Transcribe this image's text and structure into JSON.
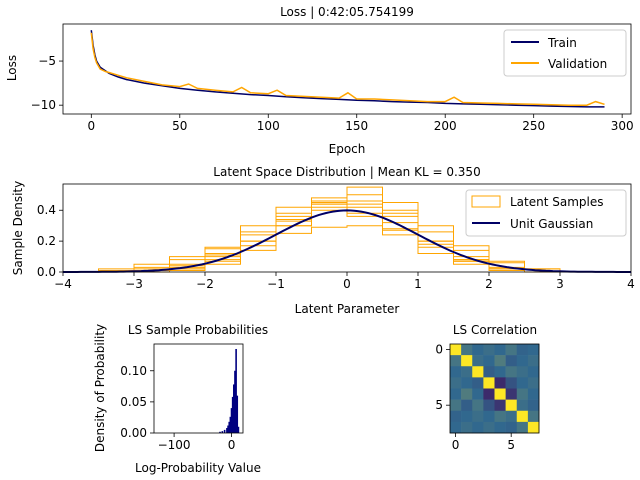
{
  "chart_data": [
    {
      "type": "line",
      "title": "Loss | 0:42:05.754199",
      "xlabel": "Epoch",
      "ylabel": "Loss",
      "xlim": [
        -16,
        305
      ],
      "ylim": [
        -11,
        -0.8
      ],
      "xticks": [
        0,
        50,
        100,
        150,
        200,
        250,
        300
      ],
      "yticks": [
        -5,
        -10
      ],
      "legend_position": "top-right",
      "series": [
        {
          "name": "Train",
          "color": "#000066",
          "x": [
            0,
            1,
            2,
            3,
            5,
            8,
            10,
            15,
            20,
            30,
            40,
            50,
            60,
            70,
            80,
            90,
            100,
            110,
            120,
            130,
            140,
            150,
            160,
            170,
            180,
            190,
            200,
            210,
            220,
            230,
            240,
            250,
            260,
            270,
            280,
            290
          ],
          "y": [
            -1.5,
            -3.2,
            -4.3,
            -5.0,
            -5.7,
            -6.1,
            -6.4,
            -6.8,
            -7.1,
            -7.5,
            -7.8,
            -8.1,
            -8.3,
            -8.5,
            -8.65,
            -8.8,
            -8.9,
            -9.05,
            -9.15,
            -9.25,
            -9.35,
            -9.45,
            -9.5,
            -9.6,
            -9.65,
            -9.7,
            -9.8,
            -9.85,
            -9.9,
            -9.95,
            -10.0,
            -10.05,
            -10.1,
            -10.15,
            -10.2,
            -10.2
          ]
        },
        {
          "name": "Validation",
          "color": "#ffa500",
          "x": [
            0,
            1,
            2,
            3,
            5,
            8,
            10,
            15,
            20,
            30,
            40,
            50,
            55,
            60,
            70,
            80,
            85,
            90,
            100,
            105,
            110,
            120,
            130,
            140,
            145,
            150,
            160,
            170,
            180,
            190,
            200,
            205,
            210,
            220,
            230,
            240,
            250,
            260,
            270,
            280,
            285,
            290
          ],
          "y": [
            -1.8,
            -3.6,
            -4.6,
            -5.2,
            -5.9,
            -6.2,
            -6.3,
            -6.6,
            -6.9,
            -7.3,
            -7.7,
            -7.9,
            -7.6,
            -8.1,
            -8.3,
            -8.5,
            -8.0,
            -8.6,
            -8.7,
            -8.3,
            -8.9,
            -9.0,
            -9.1,
            -9.2,
            -8.6,
            -9.3,
            -9.3,
            -9.4,
            -9.5,
            -9.6,
            -9.6,
            -9.1,
            -9.7,
            -9.75,
            -9.8,
            -9.85,
            -9.9,
            -9.95,
            -10.0,
            -10.0,
            -9.6,
            -9.9
          ]
        }
      ]
    },
    {
      "type": "line",
      "title": "Latent Space Distribution | Mean KL = 0.350",
      "xlabel": "Latent Parameter",
      "ylabel": "Sample Density",
      "xlim": [
        -4,
        4
      ],
      "ylim": [
        0,
        0.57
      ],
      "xticks": [
        -4,
        -3,
        -2,
        -1,
        0,
        1,
        2,
        3,
        4
      ],
      "yticks": [
        0.0,
        0.2,
        0.4
      ],
      "legend_position": "top-right",
      "series": [
        {
          "name": "Latent Samples",
          "color": "#ffa500",
          "bin_edges": [
            -3.5,
            -3.0,
            -2.5,
            -2.0,
            -1.5,
            -1.0,
            -0.5,
            0.0,
            0.5,
            1.0,
            1.5,
            2.0,
            2.5,
            3.0
          ],
          "histograms": [
            [
              0.0,
              0.02,
              0.05,
              0.11,
              0.2,
              0.3,
              0.4,
              0.44,
              0.4,
              0.3,
              0.17,
              0.06,
              0.02
            ],
            [
              0.01,
              0.03,
              0.08,
              0.16,
              0.3,
              0.42,
              0.45,
              0.36,
              0.24,
              0.12,
              0.05,
              0.01,
              0.0
            ],
            [
              0.0,
              0.0,
              0.02,
              0.07,
              0.17,
              0.33,
              0.48,
              0.5,
              0.38,
              0.2,
              0.07,
              0.02,
              0.0
            ],
            [
              0.02,
              0.05,
              0.1,
              0.15,
              0.2,
              0.25,
              0.29,
              0.3,
              0.27,
              0.2,
              0.14,
              0.07,
              0.02
            ],
            [
              0.0,
              0.01,
              0.03,
              0.1,
              0.24,
              0.36,
              0.44,
              0.42,
              0.32,
              0.18,
              0.08,
              0.03,
              0.0
            ],
            [
              0.0,
              0.0,
              0.01,
              0.05,
              0.14,
              0.3,
              0.46,
              0.55,
              0.45,
              0.26,
              0.1,
              0.02,
              0.0
            ],
            [
              0.0,
              0.01,
              0.04,
              0.12,
              0.26,
              0.38,
              0.42,
              0.38,
              0.28,
              0.16,
              0.07,
              0.02,
              0.0
            ],
            [
              0.0,
              0.0,
              0.02,
              0.08,
              0.2,
              0.34,
              0.44,
              0.46,
              0.36,
              0.2,
              0.08,
              0.02,
              0.0
            ]
          ]
        },
        {
          "name": "Unit Gaussian",
          "color": "#000066",
          "mean": 0,
          "std": 1
        }
      ]
    },
    {
      "type": "bar",
      "title": "LS Sample Probabilities",
      "xlabel": "Log-Probability Value",
      "ylabel": "Density of Probability",
      "xlim": [
        -135,
        20
      ],
      "ylim": [
        0,
        0.143
      ],
      "xticks": [
        -100,
        0
      ],
      "yticks": [
        0.0,
        0.05,
        0.1
      ],
      "color": "#000080",
      "categories": [
        -20,
        -16,
        -12,
        -8,
        -6,
        -4,
        -2,
        0,
        2,
        4,
        6,
        8,
        10,
        12
      ],
      "values": [
        0.002,
        0.003,
        0.005,
        0.008,
        0.012,
        0.018,
        0.026,
        0.04,
        0.058,
        0.078,
        0.1,
        0.135,
        0.06,
        0.01
      ]
    },
    {
      "type": "heatmap",
      "title": "LS Correlation",
      "xticks": [
        0,
        5
      ],
      "yticks": [
        0,
        5
      ],
      "colors": {
        "low": "#440154",
        "mid": "#31688e",
        "high": "#fde725"
      },
      "matrix": [
        [
          1.0,
          0.1,
          0.0,
          0.05,
          0.0,
          0.1,
          -0.05,
          0.0
        ],
        [
          0.1,
          1.0,
          0.05,
          0.0,
          0.15,
          -0.1,
          0.0,
          0.05
        ],
        [
          0.0,
          0.05,
          1.0,
          -0.1,
          0.0,
          0.1,
          0.05,
          0.0
        ],
        [
          0.05,
          0.0,
          -0.1,
          1.0,
          -0.6,
          -0.2,
          0.0,
          0.05
        ],
        [
          0.0,
          0.15,
          0.0,
          -0.6,
          1.0,
          -0.5,
          0.1,
          0.0
        ],
        [
          0.1,
          -0.1,
          0.1,
          -0.2,
          -0.5,
          1.0,
          0.05,
          -0.05
        ],
        [
          -0.05,
          0.0,
          0.05,
          0.0,
          0.1,
          0.05,
          1.0,
          0.1
        ],
        [
          0.0,
          0.05,
          0.0,
          0.05,
          0.0,
          -0.05,
          0.1,
          1.0
        ]
      ]
    }
  ]
}
